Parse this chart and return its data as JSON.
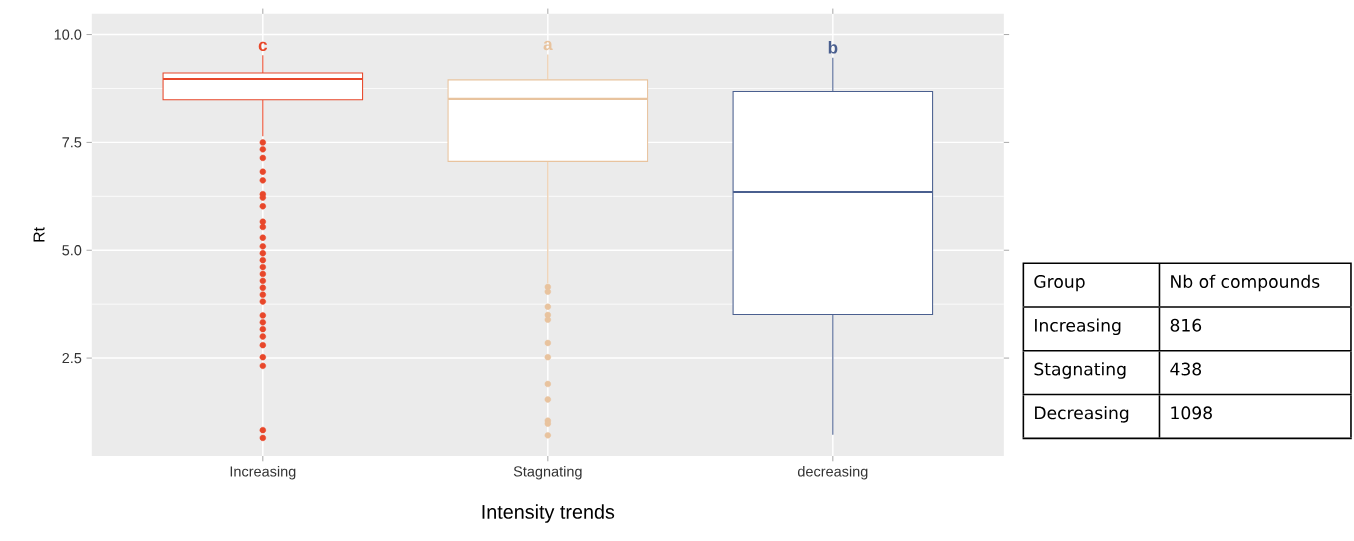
{
  "chart_data": {
    "type": "box",
    "xlabel": "Intensity trends",
    "ylabel": "Rt",
    "categories": [
      "Increasing",
      "Stagnating",
      "decreasing"
    ],
    "colors": [
      "#e8472a",
      "#e8c39e",
      "#4a5f8f"
    ],
    "boxes": [
      {
        "low": 7.64,
        "q1": 8.49,
        "median": 8.97,
        "q3": 9.11,
        "high": 9.52,
        "outliers": [
          7.5,
          7.34,
          7.14,
          6.82,
          6.62,
          6.3,
          6.22,
          6.02,
          5.66,
          5.54,
          5.29,
          5.09,
          4.93,
          4.77,
          4.61,
          4.45,
          4.29,
          4.13,
          3.97,
          3.81,
          3.49,
          3.33,
          3.17,
          3.0,
          2.8,
          2.52,
          2.32,
          0.83,
          0.65
        ]
      },
      {
        "low": 4.23,
        "q1": 7.06,
        "median": 8.51,
        "q3": 8.95,
        "high": 9.54,
        "outliers": [
          4.15,
          4.04,
          3.69,
          3.5,
          3.39,
          2.85,
          2.52,
          1.9,
          1.54,
          1.05,
          0.98,
          0.71
        ]
      },
      {
        "low": 0.72,
        "q1": 3.51,
        "median": 6.35,
        "q3": 8.68,
        "high": 9.46
      }
    ],
    "ylim": [
      0.23,
      10.48
    ],
    "yticks": [
      {
        "value": 2.5,
        "label": "2.5"
      },
      {
        "value": 5,
        "label": "5.0"
      },
      {
        "value": 7.5,
        "label": "7.5"
      },
      {
        "value": 10,
        "label": "10.0"
      }
    ],
    "grid": true,
    "annotations": [
      {
        "text": "c",
        "x": "Increasing",
        "y": 9.52
      },
      {
        "text": "a",
        "x": "Stagnating",
        "y": 9.54
      },
      {
        "text": "b",
        "x": "decreasing",
        "y": 9.46
      },
      "Group",
      "Nb of compounds",
      "Increasing",
      "816",
      "Stagnating",
      "438",
      "Decreasing",
      "1098"
    ]
  }
}
